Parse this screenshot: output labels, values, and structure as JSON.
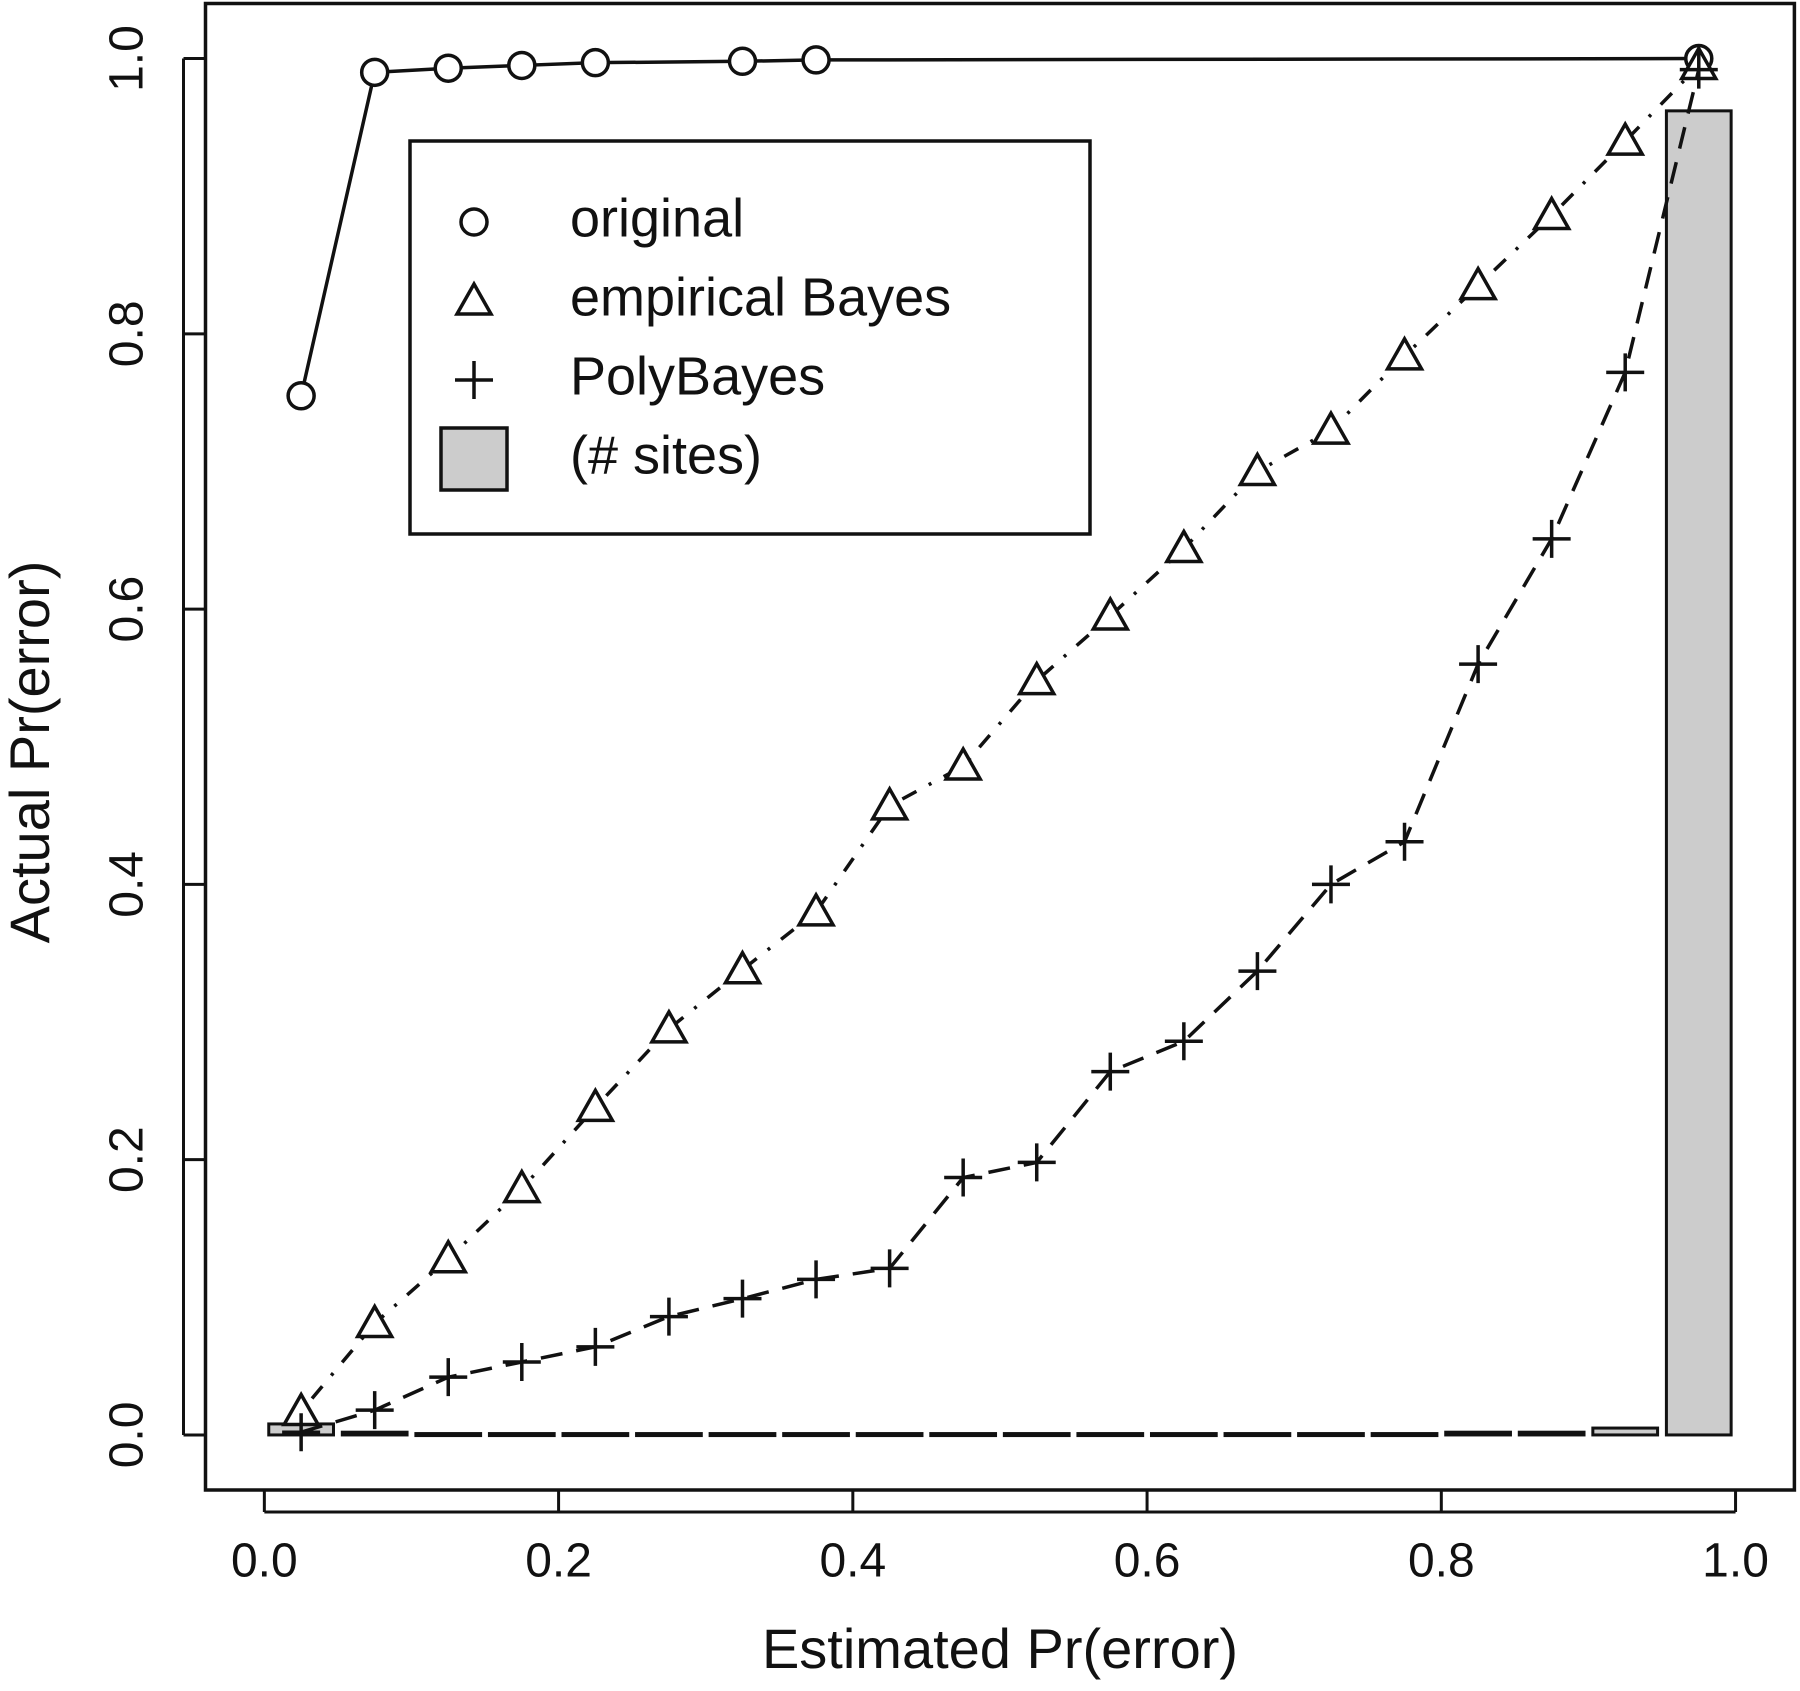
{
  "chart_data": {
    "type": "line",
    "x_label": "Estimated Pr(error)",
    "y_label": "Actual Pr(error)",
    "xlim": [
      -0.04,
      1.04
    ],
    "ylim": [
      -0.04,
      1.04
    ],
    "xticks": [
      {
        "value": 0,
        "label": "0.0"
      },
      0.2,
      0.4,
      0.6,
      0.8,
      {
        "value": 1,
        "label": "1.0"
      }
    ],
    "yticks": [
      {
        "value": 0,
        "label": "0.0"
      },
      0.2,
      0.4,
      0.6,
      0.8,
      {
        "value": 1,
        "label": "1.0"
      }
    ],
    "legend": "top-left",
    "series": [
      {
        "name": "original",
        "marker": "circle",
        "line": "solid",
        "color": "#111111",
        "x": [
          0.025,
          0.075,
          0.125,
          0.175,
          0.225,
          0.325,
          0.375,
          0.975
        ],
        "values": [
          0.755,
          0.99,
          0.993,
          0.995,
          0.997,
          0.998,
          0.999,
          1.0
        ]
      },
      {
        "name": "empirical Bayes",
        "marker": "triangle",
        "line": "dotdash",
        "color": "#111111",
        "x": [
          0.025,
          0.075,
          0.125,
          0.175,
          0.225,
          0.275,
          0.325,
          0.375,
          0.425,
          0.475,
          0.525,
          0.575,
          0.625,
          0.675,
          0.725,
          0.775,
          0.825,
          0.875,
          0.925,
          0.975
        ],
        "values": [
          0.017,
          0.081,
          0.128,
          0.179,
          0.238,
          0.295,
          0.338,
          0.38,
          0.457,
          0.486,
          0.548,
          0.595,
          0.644,
          0.7,
          0.73,
          0.784,
          0.835,
          0.886,
          0.94,
          0.995
        ]
      },
      {
        "name": "PolyBayes",
        "marker": "plus",
        "line": "dashed",
        "color": "#111111",
        "x": [
          0.025,
          0.075,
          0.125,
          0.175,
          0.225,
          0.275,
          0.325,
          0.375,
          0.425,
          0.475,
          0.525,
          0.575,
          0.625,
          0.675,
          0.725,
          0.775,
          0.825,
          0.875,
          0.925,
          0.975
        ],
        "values": [
          0.002,
          0.018,
          0.042,
          0.053,
          0.064,
          0.086,
          0.099,
          0.113,
          0.121,
          0.187,
          0.198,
          0.264,
          0.286,
          0.337,
          0.4,
          0.431,
          0.56,
          0.651,
          0.772,
          0.992
        ]
      },
      {
        "name": "(# sites)",
        "marker": "bar",
        "color": "#cccccc",
        "x": [
          0.025,
          0.075,
          0.125,
          0.175,
          0.225,
          0.275,
          0.325,
          0.375,
          0.425,
          0.475,
          0.525,
          0.575,
          0.625,
          0.675,
          0.725,
          0.775,
          0.825,
          0.875,
          0.925,
          0.975
        ],
        "values": [
          0.008,
          0.002,
          0.001,
          0.001,
          0.001,
          0.001,
          0.001,
          0.001,
          0.001,
          0.001,
          0.001,
          0.001,
          0.001,
          0.001,
          0.001,
          0.001,
          0.002,
          0.002,
          0.005,
          0.962
        ]
      }
    ]
  }
}
